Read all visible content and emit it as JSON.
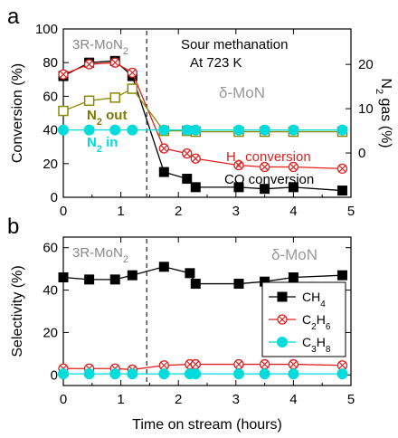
{
  "chart_data": [
    {
      "panel": "a",
      "type": "line",
      "xlabel": "",
      "ylabel": "Conversion (%)",
      "y2label": "N2 gas (%)",
      "xlim": [
        0,
        5
      ],
      "ylim": [
        0,
        100
      ],
      "y2lim": [
        -10,
        28
      ],
      "x_ticks": [
        "0",
        "1",
        "2",
        "3",
        "4",
        "5"
      ],
      "y_ticks": [
        "0",
        "20",
        "40",
        "60",
        "80",
        "100"
      ],
      "y2_ticks": [
        "0",
        "10",
        "20"
      ],
      "annotations": {
        "phase_left": "3R-MoN",
        "phase_left_sub": "2",
        "phase_right": "δ-MoN",
        "condition_1": "Sour methanation",
        "condition_2": "At 723 K",
        "h2_label": "H",
        "h2_label_sub": "2",
        "h2_label_rest": " conversion",
        "co_label": "CO conversion",
        "n2out_label": "N",
        "n2out_sub": "2",
        "n2out_rest": " out",
        "n2in_label": "N",
        "n2in_sub": "2",
        "n2in_rest": " in"
      },
      "series": [
        {
          "name": "CO conversion",
          "axis": "left",
          "color": "#000000",
          "marker": "square",
          "x": [
            0,
            0.45,
            0.9,
            1.2,
            1.75,
            2.15,
            2.3,
            3.05,
            3.5,
            4.0,
            4.85
          ],
          "y": [
            72,
            80,
            81,
            72,
            15,
            11,
            6,
            6,
            5,
            6,
            4
          ]
        },
        {
          "name": "H2 conversion",
          "axis": "left",
          "color": "#e02020",
          "marker": "crossed-circle",
          "x": [
            0,
            0.45,
            0.9,
            1.2,
            1.75,
            2.15,
            2.3,
            3.05,
            3.5,
            4.0,
            4.85
          ],
          "y": [
            73,
            79,
            80,
            74,
            29,
            26,
            23,
            19,
            18,
            18,
            17
          ]
        },
        {
          "name": "N2 out",
          "axis": "right",
          "color": "#8a8a00",
          "marker": "open-square",
          "x": [
            0,
            0.45,
            0.9,
            1.2,
            1.75,
            2.15,
            2.3,
            3.05,
            3.5,
            4.0,
            4.85
          ],
          "y": [
            9.5,
            11.8,
            12.5,
            14.5,
            5,
            5,
            4.8,
            4.8,
            4.8,
            4.8,
            4.8
          ]
        },
        {
          "name": "N2 in",
          "axis": "right",
          "color": "#00dcdc",
          "marker": "circle",
          "x": [
            0,
            0.45,
            0.9,
            1.2,
            1.75,
            2.15,
            2.3,
            3.05,
            3.5,
            4.0,
            4.85
          ],
          "y": [
            5.2,
            5.2,
            5.2,
            5.2,
            5.2,
            5.2,
            5.2,
            5.2,
            5.2,
            5.2,
            5.2
          ]
        }
      ],
      "divider_x": 1.45
    },
    {
      "panel": "b",
      "type": "line",
      "xlabel": "Time on stream (hours)",
      "ylabel": "Selectivity (%)",
      "xlim": [
        0,
        5
      ],
      "ylim": [
        -5,
        65
      ],
      "x_ticks": [
        "0",
        "1",
        "2",
        "3",
        "4",
        "5"
      ],
      "y_ticks": [
        "0",
        "20",
        "40",
        "60"
      ],
      "annotations": {
        "phase_left": "3R-MoN",
        "phase_left_sub": "2",
        "phase_right": "δ-MoN"
      },
      "legend": {
        "position": "middle-right",
        "entries": [
          {
            "main": "CH",
            "sub": "4"
          },
          {
            "main": "C",
            "sub": "2",
            "main2": "H",
            "sub2": "6"
          },
          {
            "main": "C",
            "sub": "3",
            "main2": "H",
            "sub2": "8"
          }
        ]
      },
      "series": [
        {
          "name": "CH4",
          "color": "#000000",
          "marker": "square",
          "x": [
            0,
            0.45,
            0.9,
            1.2,
            1.75,
            2.2,
            2.3,
            3.05,
            3.5,
            4.0,
            4.85
          ],
          "y": [
            46,
            45,
            45,
            47,
            51,
            48,
            43,
            43,
            44,
            46,
            47
          ]
        },
        {
          "name": "C2H6",
          "color": "#e02020",
          "marker": "crossed-circle",
          "x": [
            0,
            0.45,
            0.9,
            1.2,
            1.75,
            2.2,
            2.3,
            3.05,
            3.5,
            4.0,
            4.85
          ],
          "y": [
            3,
            3,
            3,
            2.5,
            4.5,
            5,
            5,
            5,
            5,
            5,
            4.5
          ]
        },
        {
          "name": "C3H8",
          "color": "#00dcdc",
          "marker": "circle",
          "x": [
            0,
            0.45,
            0.9,
            1.2,
            1.75,
            2.2,
            2.3,
            3.05,
            3.5,
            4.0,
            4.85
          ],
          "y": [
            0.5,
            0.5,
            0.5,
            0.5,
            0.5,
            0.5,
            0.5,
            0.5,
            0.5,
            0.5,
            0.5
          ]
        }
      ],
      "divider_x": 1.45
    }
  ]
}
